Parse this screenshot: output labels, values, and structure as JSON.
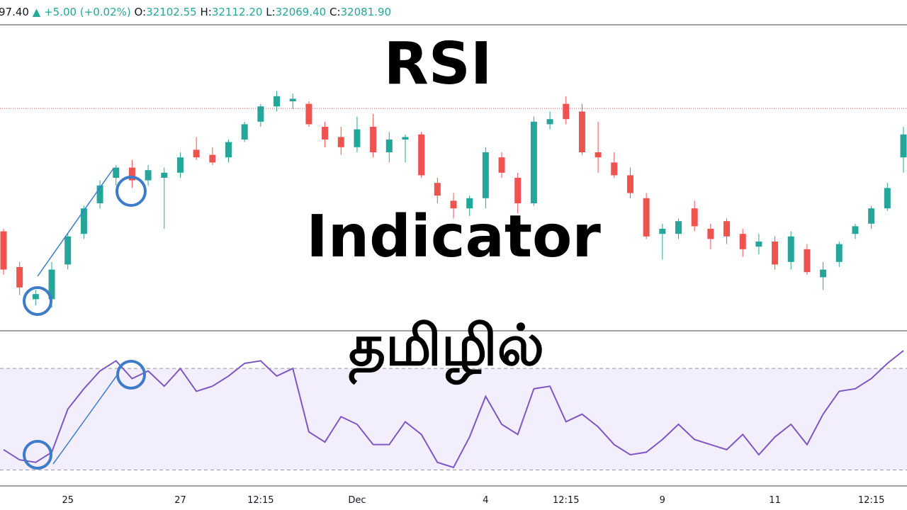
{
  "header": {
    "last": "97.40",
    "arrow": "▲",
    "change": "+5.00 (+0.02%)",
    "open_label": "O:",
    "open": "32102.55",
    "high_label": "H:",
    "high": "32112.20",
    "low_label": "L:",
    "low": "32069.40",
    "close_label": "C:",
    "close": "32081.90"
  },
  "overlay": {
    "line1": "RSI",
    "line2": "Indicator",
    "line3": "தமிழில்"
  },
  "chart_data": [
    {
      "type": "candlestick",
      "up_color": "#26a69a",
      "down_color": "#ef5350",
      "ylim": [
        31800,
        32400
      ],
      "price_line": 32236,
      "price_line_color": "#ef5350",
      "categories": [
        null,
        null,
        null,
        null,
        "25",
        null,
        null,
        null,
        null,
        null,
        null,
        "27",
        null,
        null,
        null,
        null,
        "12:15",
        null,
        null,
        null,
        null,
        null,
        "Dec",
        null,
        null,
        null,
        null,
        null,
        null,
        null,
        "4",
        null,
        null,
        null,
        null,
        "12:15",
        null,
        null,
        null,
        null,
        null,
        "9",
        null,
        null,
        null,
        null,
        null,
        null,
        "11",
        null,
        null,
        null,
        null,
        null,
        "12:15",
        null,
        null
      ],
      "open": [
        31995,
        31925,
        31862,
        31862,
        31930,
        31990,
        32050,
        32100,
        32120,
        32095,
        32100,
        32110,
        32155,
        32145,
        32140,
        32175,
        32210,
        32240,
        32250,
        32245,
        32200,
        32180,
        32160,
        32200,
        32150,
        32175,
        32185,
        32090,
        32055,
        32040,
        32060,
        32140,
        32100,
        32050,
        32205,
        32245,
        32230,
        32150,
        32130,
        32105,
        32060,
        31990,
        31990,
        32040,
        32000,
        32015,
        31990,
        31965,
        31975,
        31935,
        31960,
        31905,
        31935,
        31990,
        32010,
        32040,
        32140
      ],
      "high": [
        32000,
        31935,
        31880,
        31935,
        31990,
        32045,
        32095,
        32125,
        32135,
        32125,
        32120,
        32150,
        32180,
        32160,
        32175,
        32210,
        32245,
        32270,
        32265,
        32250,
        32210,
        32200,
        32220,
        32225,
        32190,
        32185,
        32190,
        32100,
        32070,
        32065,
        32160,
        32150,
        32110,
        32220,
        32230,
        32260,
        32245,
        32210,
        32150,
        32120,
        32070,
        32010,
        32020,
        32055,
        32010,
        32020,
        32000,
        31990,
        31985,
        31995,
        31970,
        31935,
        31975,
        32010,
        32045,
        32090,
        32200
      ],
      "low": [
        31910,
        31870,
        31850,
        31845,
        31920,
        31980,
        32040,
        32085,
        32080,
        32085,
        32000,
        32100,
        32135,
        32125,
        32130,
        32170,
        32200,
        32230,
        32235,
        32200,
        32160,
        32145,
        32150,
        32140,
        32130,
        32130,
        32100,
        32050,
        32020,
        32025,
        32040,
        32100,
        32030,
        32045,
        32195,
        32205,
        32145,
        32110,
        32100,
        32060,
        31980,
        31940,
        31980,
        31995,
        31960,
        31970,
        31945,
        31950,
        31920,
        31920,
        31910,
        31880,
        31925,
        31980,
        32000,
        32035,
        32110
      ],
      "close": [
        31920,
        31885,
        31872,
        31920,
        31985,
        32040,
        32085,
        32120,
        32095,
        32115,
        32110,
        32140,
        32140,
        32130,
        32170,
        32205,
        32240,
        32260,
        32255,
        32205,
        32175,
        32160,
        32195,
        32150,
        32175,
        32180,
        32105,
        32065,
        32040,
        32060,
        32150,
        32110,
        32050,
        32210,
        32215,
        32215,
        32150,
        32140,
        32105,
        32070,
        31985,
        32000,
        32015,
        32005,
        31980,
        31985,
        31960,
        31975,
        31930,
        31985,
        31915,
        31920,
        31970,
        32005,
        32040,
        32080,
        32185
      ]
    },
    {
      "type": "line",
      "color": "#7e57c2",
      "ylim": [
        24,
        84
      ],
      "levels": [
        30,
        70
      ],
      "band_color": "#f3eefb",
      "values": [
        38,
        34,
        33,
        37,
        54,
        62,
        69,
        73,
        66,
        69,
        63,
        70,
        61,
        63,
        67,
        72,
        73,
        67,
        70,
        45,
        41,
        51,
        48,
        40,
        40,
        49,
        44,
        33,
        31,
        43,
        59,
        48,
        44,
        62,
        63,
        49,
        52,
        47,
        40,
        36,
        37,
        42,
        48,
        42,
        40,
        38,
        44,
        36,
        43,
        48,
        40,
        52,
        61,
        62,
        66,
        72,
        77
      ]
    }
  ]
}
